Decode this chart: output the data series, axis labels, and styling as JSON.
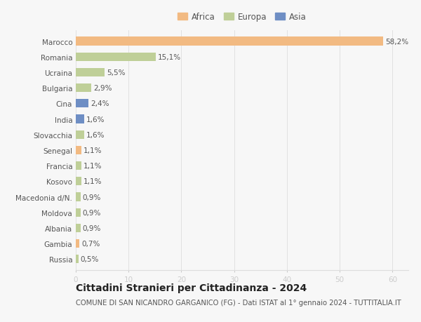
{
  "categories": [
    "Marocco",
    "Romania",
    "Ucraina",
    "Bulgaria",
    "Cina",
    "India",
    "Slovacchia",
    "Senegal",
    "Francia",
    "Kosovo",
    "Macedonia d/N.",
    "Moldova",
    "Albania",
    "Gambia",
    "Russia"
  ],
  "values": [
    58.2,
    15.1,
    5.5,
    2.9,
    2.4,
    1.6,
    1.6,
    1.1,
    1.1,
    1.1,
    0.9,
    0.9,
    0.9,
    0.7,
    0.5
  ],
  "labels": [
    "58,2%",
    "15,1%",
    "5,5%",
    "2,9%",
    "2,4%",
    "1,6%",
    "1,6%",
    "1,1%",
    "1,1%",
    "1,1%",
    "0,9%",
    "0,9%",
    "0,9%",
    "0,7%",
    "0,5%"
  ],
  "continents": [
    "Africa",
    "Europa",
    "Europa",
    "Europa",
    "Asia",
    "Asia",
    "Europa",
    "Africa",
    "Europa",
    "Europa",
    "Europa",
    "Europa",
    "Europa",
    "Africa",
    "Europa"
  ],
  "colors": {
    "Africa": "#F2BA82",
    "Europa": "#BFCF98",
    "Asia": "#6E8EC4"
  },
  "legend_labels": [
    "Africa",
    "Europa",
    "Asia"
  ],
  "legend_colors": [
    "#F2BA82",
    "#BFCF98",
    "#6E8EC4"
  ],
  "title": "Cittadini Stranieri per Cittadinanza - 2024",
  "subtitle": "COMUNE DI SAN NICANDRO GARGANICO (FG) - Dati ISTAT al 1° gennaio 2024 - TUTTITALIA.IT",
  "xlim": [
    0,
    63
  ],
  "xticks": [
    0,
    10,
    20,
    30,
    40,
    50,
    60
  ],
  "bg_color": "#f7f7f7",
  "bar_height": 0.55,
  "label_fontsize": 7.5,
  "tick_fontsize": 7.5,
  "title_fontsize": 10,
  "subtitle_fontsize": 7.2,
  "legend_fontsize": 8.5
}
